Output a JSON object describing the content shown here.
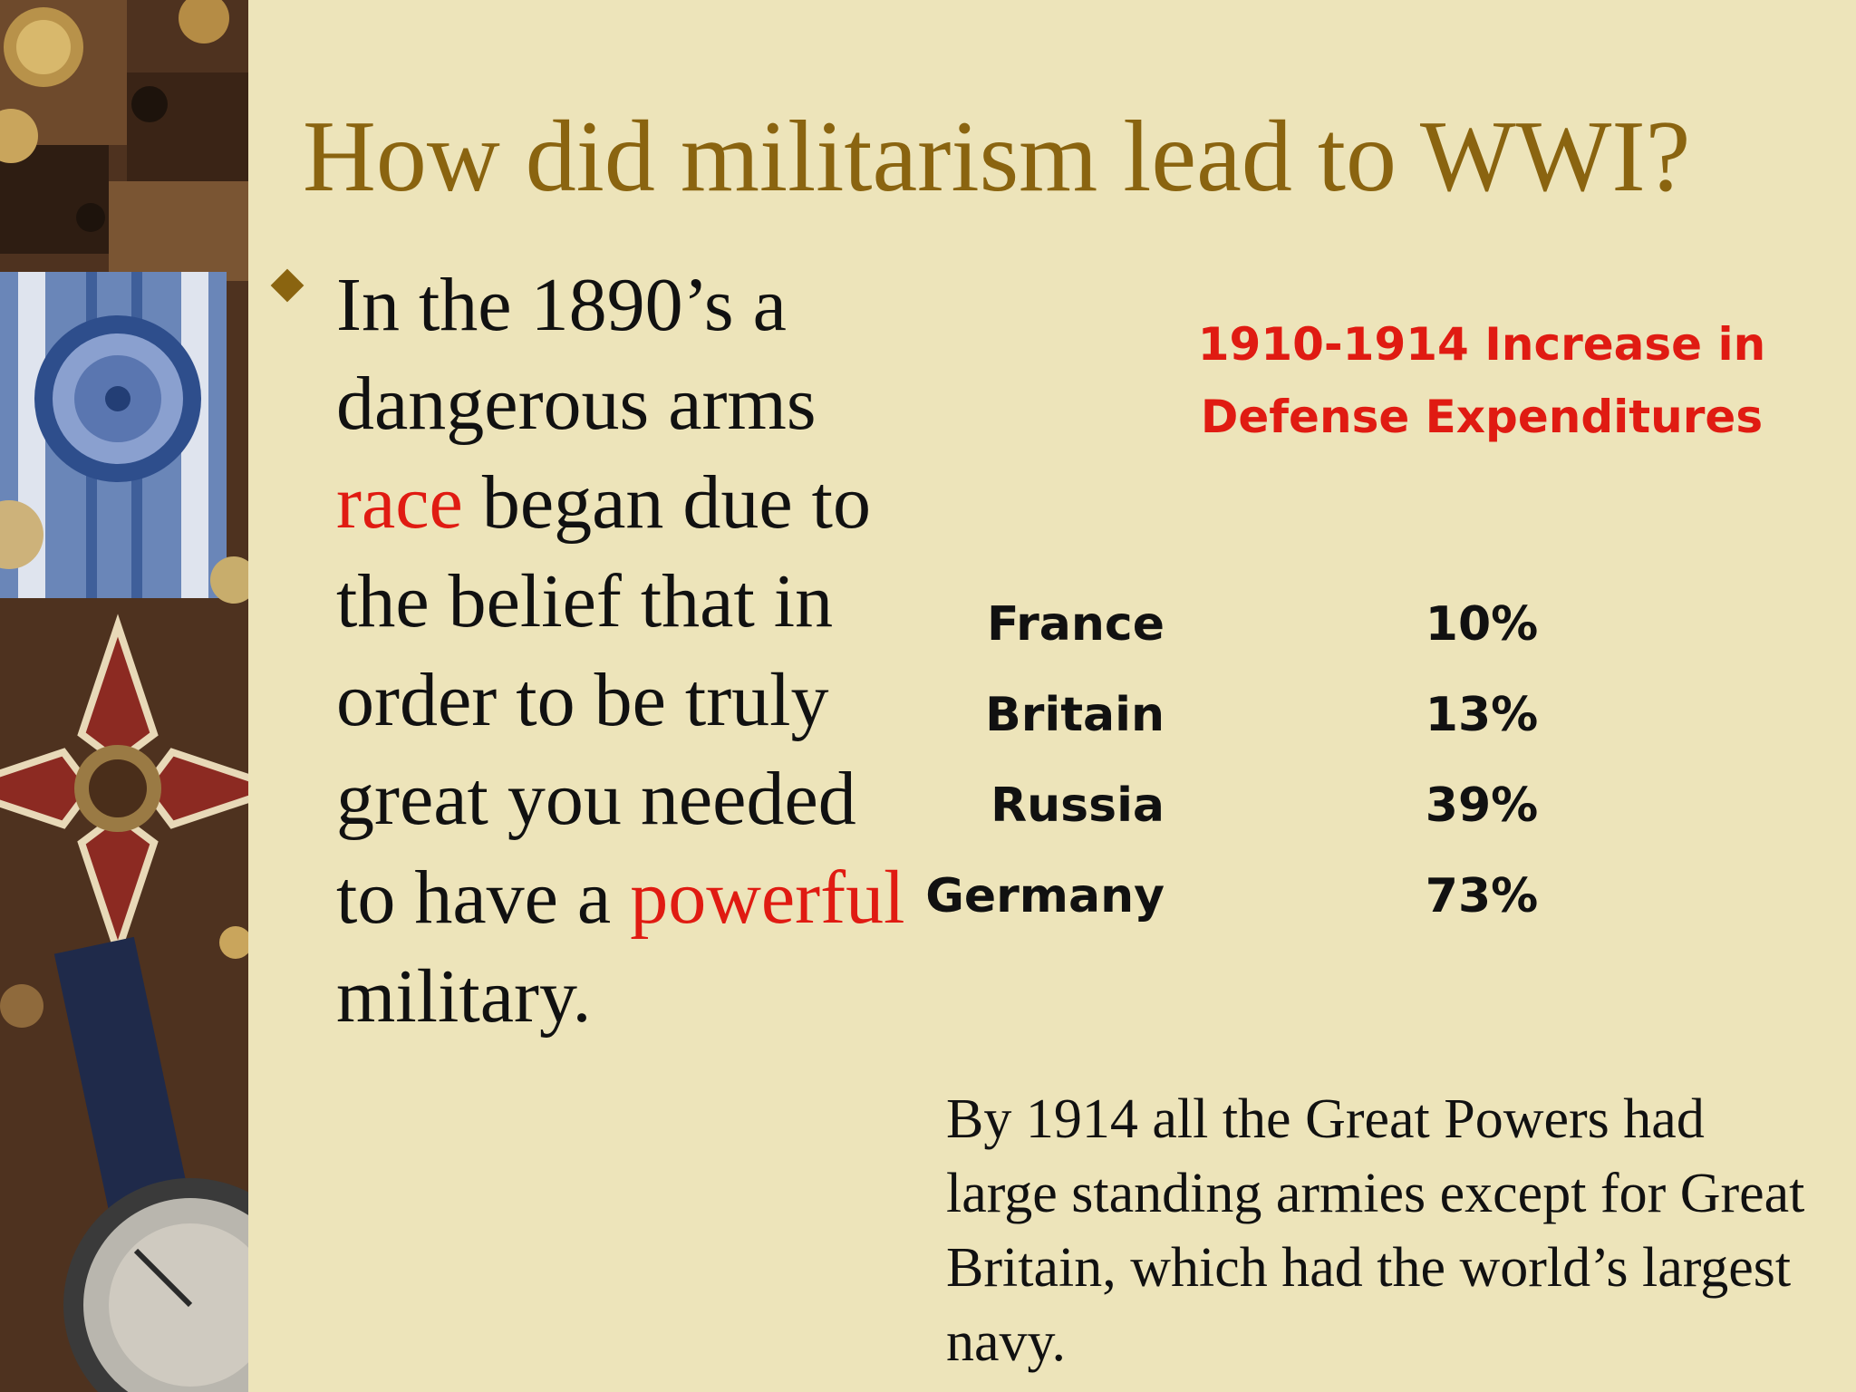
{
  "slide": {
    "title": "How did militarism lead to WWI?",
    "bullet": {
      "part1": "In the 1890’s a dangerous arms ",
      "accent1": "race",
      "part2": " began due to the belief that in order to be truly great you needed to have a ",
      "accent2": "powerful",
      "part3": " military."
    },
    "footer": "By 1914 all the Great Powers had large standing armies except for Great Britain, which had the world’s largest navy.",
    "colors": {
      "title": "#8a6410",
      "accent": "#e01b12",
      "background": "#ede4ba"
    }
  },
  "chart_data": {
    "type": "table",
    "title": "1910-1914 Increase in Defense Expenditures",
    "categories": [
      "France",
      "Britain",
      "Russia",
      "Germany"
    ],
    "values": [
      10,
      13,
      39,
      73
    ],
    "value_labels": [
      "10%",
      "13%",
      "39%",
      "73%"
    ],
    "unit": "%"
  }
}
